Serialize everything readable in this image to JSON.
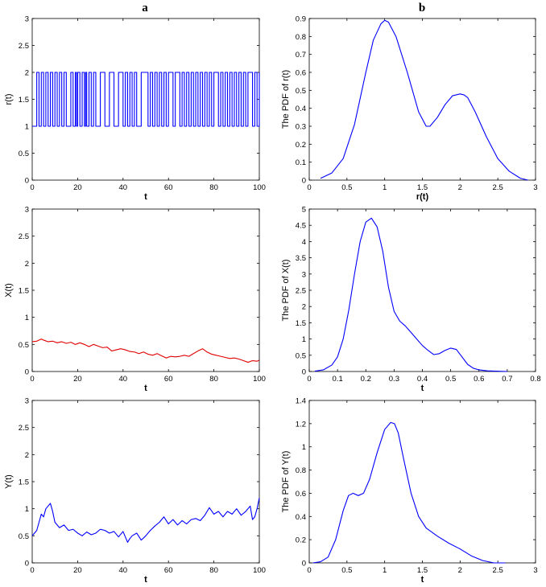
{
  "panel_labels": [
    "a",
    "b"
  ],
  "chart_data": [
    {
      "type": "line",
      "color": "#0000ff",
      "step": true,
      "xlabel": "t",
      "ylabel": "r(t)",
      "xlim": [
        0,
        100
      ],
      "ylim": [
        0,
        3
      ],
      "xticks": [
        0,
        20,
        40,
        60,
        80,
        100
      ],
      "yticks": [
        0,
        0.5,
        1,
        1.5,
        2,
        2.5,
        3
      ],
      "series": [
        {
          "x": [
            0,
            2,
            3,
            4,
            5,
            6,
            7,
            8,
            9,
            10,
            11,
            12,
            13,
            14,
            15,
            17,
            18,
            19,
            19.5,
            20,
            21,
            22,
            23,
            23.5,
            24,
            25,
            26,
            27,
            28,
            30,
            32,
            34,
            36,
            38,
            40,
            41,
            42,
            43,
            44,
            45,
            46,
            48,
            51,
            52,
            53,
            54,
            55,
            56,
            57,
            58,
            59,
            60,
            62,
            63,
            65,
            66,
            67,
            68,
            69,
            70,
            71,
            72,
            73,
            74,
            75,
            76,
            77,
            78,
            79,
            80,
            82,
            83,
            84,
            85,
            86,
            87,
            88,
            89,
            90,
            91,
            92,
            93,
            94,
            95,
            97,
            98,
            99,
            100
          ],
          "y": [
            1,
            2,
            1,
            2,
            1,
            2,
            1,
            2,
            1,
            2,
            1,
            2,
            1,
            2,
            1,
            2,
            1,
            2,
            1,
            2,
            1,
            2,
            1,
            2,
            1,
            2,
            1,
            2,
            1,
            2,
            1,
            2,
            1,
            2,
            1,
            2,
            1,
            2,
            1,
            2,
            1,
            2,
            1,
            2,
            1,
            2,
            1,
            2,
            1,
            2,
            1,
            2,
            1,
            2,
            1,
            2,
            1,
            2,
            1,
            2,
            1,
            2,
            1,
            2,
            1,
            2,
            1,
            2,
            1,
            2,
            1,
            2,
            1,
            2,
            1,
            2,
            1,
            2,
            1,
            2,
            1,
            2,
            1,
            2,
            1,
            2,
            1,
            2
          ]
        }
      ]
    },
    {
      "type": "line",
      "color": "#0000ff",
      "xlabel": "r(t)",
      "ylabel": "The PDF of r(t)",
      "xlim": [
        0,
        3
      ],
      "ylim": [
        0,
        0.9
      ],
      "xticks": [
        0,
        0.5,
        1,
        1.5,
        2,
        2.5,
        3
      ],
      "yticks": [
        0,
        0.1,
        0.2,
        0.3,
        0.4,
        0.5,
        0.6,
        0.7,
        0.8,
        0.9
      ],
      "series": [
        {
          "x": [
            0.15,
            0.3,
            0.45,
            0.6,
            0.75,
            0.85,
            0.95,
            1.0,
            1.05,
            1.15,
            1.3,
            1.45,
            1.55,
            1.6,
            1.7,
            1.8,
            1.9,
            2.0,
            2.05,
            2.1,
            2.2,
            2.35,
            2.5,
            2.65,
            2.8,
            2.9
          ],
          "y": [
            0.01,
            0.04,
            0.12,
            0.31,
            0.6,
            0.78,
            0.87,
            0.89,
            0.88,
            0.8,
            0.6,
            0.38,
            0.3,
            0.3,
            0.35,
            0.42,
            0.47,
            0.48,
            0.475,
            0.46,
            0.38,
            0.24,
            0.12,
            0.05,
            0.01,
            0.0
          ]
        }
      ]
    },
    {
      "type": "line",
      "color": "#e00000",
      "xlabel": "t",
      "ylabel": "X(t)",
      "xlim": [
        0,
        100
      ],
      "ylim": [
        0,
        3
      ],
      "xticks": [
        0,
        20,
        40,
        60,
        80,
        100
      ],
      "yticks": [
        0,
        0.5,
        1,
        1.5,
        2,
        2.5,
        3
      ],
      "series": [
        {
          "x": [
            0,
            2,
            4,
            5,
            7,
            9,
            11,
            13,
            15,
            17,
            19,
            21,
            23,
            25,
            27,
            29,
            31,
            33,
            35,
            37,
            39,
            41,
            43,
            45,
            47,
            49,
            51,
            53,
            55,
            57,
            59,
            61,
            63,
            65,
            67,
            69,
            71,
            73,
            75,
            77,
            79,
            81,
            83,
            85,
            87,
            89,
            91,
            93,
            95,
            97,
            99,
            100
          ],
          "y": [
            0.55,
            0.56,
            0.6,
            0.58,
            0.55,
            0.56,
            0.53,
            0.55,
            0.52,
            0.54,
            0.5,
            0.53,
            0.5,
            0.46,
            0.5,
            0.47,
            0.44,
            0.45,
            0.38,
            0.4,
            0.42,
            0.4,
            0.37,
            0.36,
            0.33,
            0.36,
            0.32,
            0.3,
            0.33,
            0.29,
            0.25,
            0.28,
            0.27,
            0.28,
            0.3,
            0.28,
            0.33,
            0.38,
            0.42,
            0.36,
            0.32,
            0.3,
            0.28,
            0.26,
            0.24,
            0.25,
            0.23,
            0.2,
            0.17,
            0.2,
            0.19,
            0.21
          ]
        }
      ]
    },
    {
      "type": "line",
      "color": "#0000ff",
      "xlabel": "t",
      "ylabel": "The PDF of X(t)",
      "xlim": [
        0,
        0.8
      ],
      "ylim": [
        0,
        5
      ],
      "xticks": [
        0,
        0.1,
        0.2,
        0.3,
        0.4,
        0.5,
        0.6,
        0.7,
        0.8
      ],
      "yticks": [
        0,
        0.5,
        1,
        1.5,
        2,
        2.5,
        3,
        3.5,
        4,
        4.5,
        5
      ],
      "series": [
        {
          "x": [
            0.02,
            0.05,
            0.08,
            0.1,
            0.12,
            0.14,
            0.16,
            0.18,
            0.2,
            0.22,
            0.24,
            0.26,
            0.28,
            0.3,
            0.32,
            0.34,
            0.36,
            0.38,
            0.4,
            0.42,
            0.44,
            0.46,
            0.48,
            0.5,
            0.52,
            0.54,
            0.56,
            0.58,
            0.6,
            0.63,
            0.66,
            0.7
          ],
          "y": [
            0.01,
            0.05,
            0.2,
            0.45,
            1.0,
            1.9,
            3.0,
            4.0,
            4.6,
            4.72,
            4.45,
            3.7,
            2.6,
            1.85,
            1.55,
            1.4,
            1.2,
            1.0,
            0.8,
            0.65,
            0.52,
            0.55,
            0.65,
            0.72,
            0.68,
            0.45,
            0.22,
            0.1,
            0.05,
            0.02,
            0.01,
            0.0
          ]
        }
      ]
    },
    {
      "type": "line",
      "color": "#0000ff",
      "xlabel": "t",
      "ylabel": "Y(t)",
      "xlim": [
        0,
        100
      ],
      "ylim": [
        0,
        3
      ],
      "xticks": [
        0,
        20,
        40,
        60,
        80,
        100
      ],
      "yticks": [
        0,
        0.5,
        1,
        1.5,
        2,
        2.5,
        3
      ],
      "series": [
        {
          "x": [
            0,
            1,
            2,
            3,
            4,
            5,
            6,
            7,
            8,
            9,
            10,
            12,
            14,
            16,
            18,
            20,
            22,
            24,
            26,
            28,
            30,
            32,
            34,
            36,
            38,
            40,
            41,
            42,
            43,
            44,
            46,
            48,
            50,
            52,
            54,
            56,
            58,
            60,
            62,
            64,
            66,
            68,
            70,
            72,
            74,
            76,
            78,
            80,
            82,
            84,
            86,
            88,
            90,
            92,
            94,
            96,
            97,
            98,
            99,
            100
          ],
          "y": [
            0.5,
            0.55,
            0.6,
            0.75,
            0.9,
            0.85,
            1.0,
            1.05,
            1.1,
            0.95,
            0.75,
            0.65,
            0.7,
            0.6,
            0.62,
            0.55,
            0.5,
            0.57,
            0.52,
            0.55,
            0.62,
            0.6,
            0.55,
            0.58,
            0.48,
            0.58,
            0.48,
            0.38,
            0.45,
            0.5,
            0.55,
            0.42,
            0.5,
            0.6,
            0.68,
            0.75,
            0.85,
            0.72,
            0.8,
            0.7,
            0.78,
            0.72,
            0.8,
            0.82,
            0.78,
            0.88,
            1.02,
            0.9,
            0.95,
            0.85,
            0.95,
            0.9,
            1.0,
            0.88,
            0.95,
            1.05,
            0.8,
            0.85,
            1.0,
            1.2
          ]
        }
      ]
    },
    {
      "type": "line",
      "color": "#0000ff",
      "xlabel": "t",
      "ylabel": "The PDF of Y(t)",
      "xlim": [
        0,
        3
      ],
      "ylim": [
        0,
        1.4
      ],
      "xticks": [
        0,
        0.5,
        1,
        1.5,
        2,
        2.5,
        3
      ],
      "yticks": [
        0,
        0.2,
        0.4,
        0.6,
        0.8,
        1,
        1.2,
        1.4
      ],
      "series": [
        {
          "x": [
            0.05,
            0.15,
            0.25,
            0.35,
            0.45,
            0.52,
            0.58,
            0.65,
            0.72,
            0.8,
            0.9,
            1.0,
            1.08,
            1.13,
            1.18,
            1.25,
            1.35,
            1.45,
            1.55,
            1.7,
            1.85,
            2.0,
            2.15,
            2.3,
            2.45,
            2.6
          ],
          "y": [
            0.0,
            0.01,
            0.05,
            0.2,
            0.45,
            0.58,
            0.6,
            0.58,
            0.6,
            0.72,
            0.95,
            1.15,
            1.21,
            1.2,
            1.12,
            0.9,
            0.6,
            0.4,
            0.3,
            0.23,
            0.17,
            0.12,
            0.06,
            0.02,
            0.0,
            0.0
          ]
        }
      ]
    }
  ]
}
